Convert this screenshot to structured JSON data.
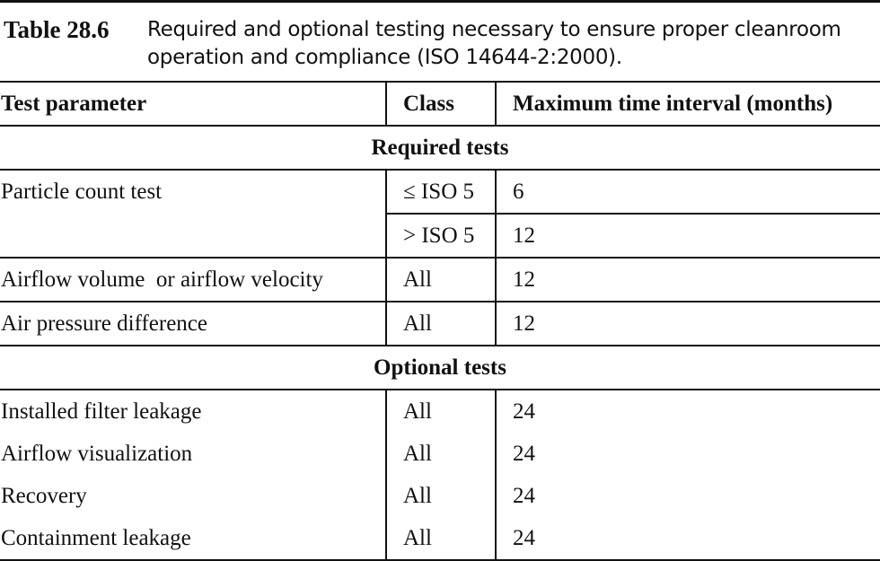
{
  "caption": {
    "label": "Table 28.6",
    "text": "Required and optional testing necessary to ensure proper cleanroom operation and compliance (ISO 14644-2:2000)."
  },
  "table": {
    "headers": [
      "Test parameter",
      "Class",
      "Maximum time interval (months)"
    ],
    "sections": [
      {
        "title": "Required tests",
        "rows": [
          {
            "parameter": "Particle count test",
            "class": "≤ ISO 5",
            "interval": "6"
          },
          {
            "parameter": "",
            "class": "> ISO 5",
            "interval": "12"
          },
          {
            "parameter": "Airflow volume  or airflow velocity",
            "class": "All",
            "interval": "12"
          },
          {
            "parameter": "Air pressure difference",
            "class": "All",
            "interval": "12"
          }
        ]
      },
      {
        "title": "Optional tests",
        "rows": [
          {
            "parameter": "Installed filter leakage",
            "class": "All",
            "interval": "24"
          },
          {
            "parameter": "Airflow visualization",
            "class": "All",
            "interval": "24"
          },
          {
            "parameter": "Recovery",
            "class": "All",
            "interval": "24"
          },
          {
            "parameter": "Containment leakage",
            "class": "All",
            "interval": "24"
          }
        ]
      }
    ]
  }
}
